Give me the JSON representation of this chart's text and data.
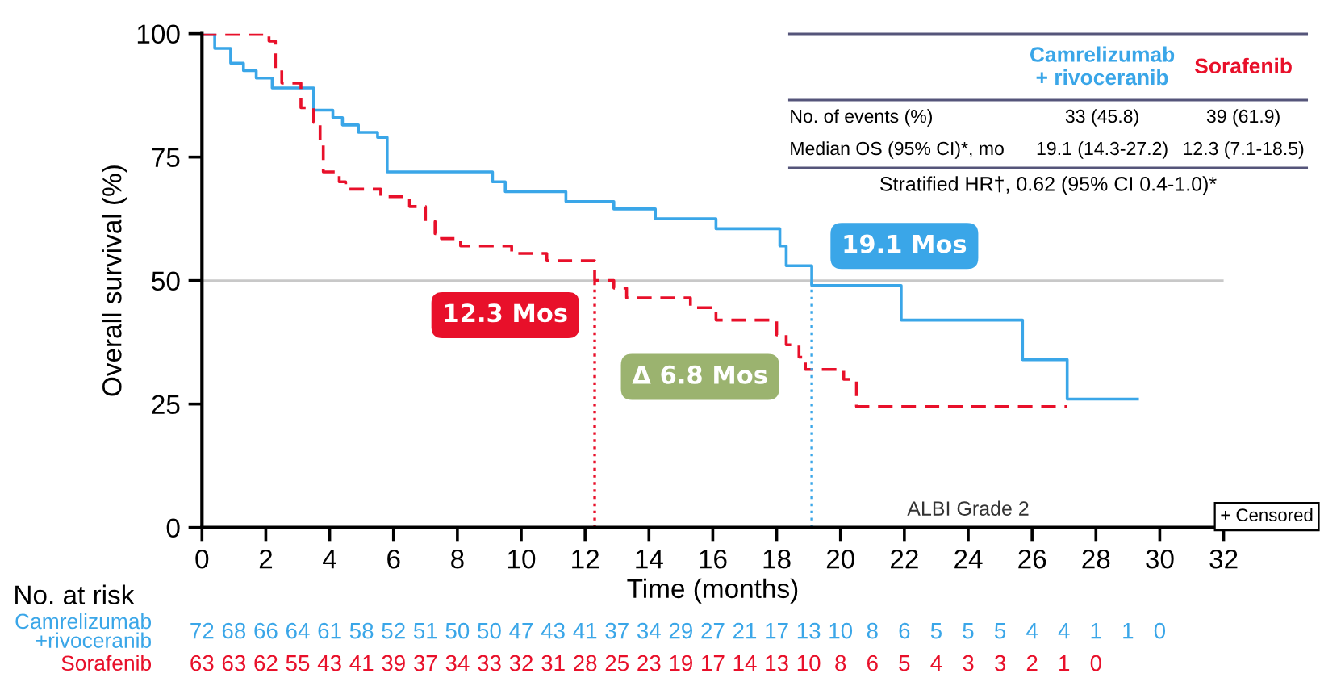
{
  "chart_data": {
    "type": "step",
    "xlabel": "Time (months)",
    "ylabel": "Overall survival (%)",
    "xlim": [
      0,
      32
    ],
    "xticks": [
      0,
      2,
      4,
      6,
      8,
      10,
      12,
      14,
      16,
      18,
      20,
      22,
      24,
      26,
      28,
      30,
      32
    ],
    "ylim": [
      0,
      100
    ],
    "yticks": [
      0,
      25,
      50,
      75,
      100
    ],
    "grid": false,
    "legend": false,
    "series": [
      {
        "name": "Camrelizumab\n+ rivoceranib",
        "color": "#3aa6e8",
        "line_style": "solid",
        "x": [
          0,
          0.4,
          0.9,
          1.3,
          1.7,
          2.2,
          3.5,
          4.1,
          4.4,
          4.9,
          5.5,
          5.8,
          9.1,
          9.5,
          11.4,
          12.9,
          14.2,
          16.1,
          18.1,
          18.3,
          19.1,
          21.9,
          25.7,
          27.1,
          29.3
        ],
        "values": [
          100,
          97,
          94,
          92.5,
          91,
          89,
          84.5,
          83,
          81.5,
          80,
          79,
          72,
          70,
          68,
          66,
          64.5,
          62.5,
          60.5,
          57,
          53,
          49,
          42,
          34,
          26,
          26
        ]
      },
      {
        "name": "Sorafenib",
        "color": "#e8102a",
        "line_style": "dashed",
        "x": [
          0,
          2.1,
          2.3,
          2.5,
          3.1,
          3.5,
          3.7,
          3.8,
          4.3,
          4.5,
          5.6,
          6.5,
          7.0,
          7.3,
          7.5,
          8.1,
          9.7,
          10.8,
          12.3,
          12.9,
          13.3,
          15.3,
          16.1,
          18.0,
          18.3,
          18.7,
          18.9,
          20.1,
          20.5,
          27.1
        ],
        "values": [
          100,
          98.5,
          93,
          90,
          85,
          82,
          78,
          72,
          70,
          68.5,
          67,
          65,
          62,
          59.5,
          58.5,
          57,
          55.5,
          54,
          50,
          48.5,
          46.5,
          44.5,
          42,
          39,
          37,
          34.5,
          32,
          30,
          24.5,
          24.5
        ]
      }
    ],
    "ref_lines": [
      {
        "axis": "y",
        "value": 50,
        "color": "#c8c8c8",
        "line_style": "solid"
      },
      {
        "axis": "x",
        "value": 12.3,
        "color": "#e8102a",
        "line_style": "dotted"
      },
      {
        "axis": "x",
        "value": 19.1,
        "color": "#3aa6e8",
        "line_style": "dotted"
      }
    ],
    "annotations": [
      "12.3 Mos",
      "19.1 Mos",
      "Δ 6.8 Mos",
      "ALBI Grade 2",
      "+ Censored",
      "No. of events (%)",
      "33 (45.8)",
      "39 (61.9)",
      "Median OS (95% CI)*, mo",
      "19.1 (14.3-27.2)",
      "12.3 (7.1-18.5)",
      "Stratified HR†, 0.62 (95% CI 0.4-1.0)*",
      "No. at risk",
      "72 68 66 64 61 58 52 51 50 50 47 43 41 37 34 29 27 21 17 13 10 8 6 5 5 5 4 4 1 1 0",
      "63 63 62 55 43 41 39 37 34 33 32 31 28 25 23 19 17 14 13 10 8 6 5 4 3 3 2 1 0"
    ]
  }
}
